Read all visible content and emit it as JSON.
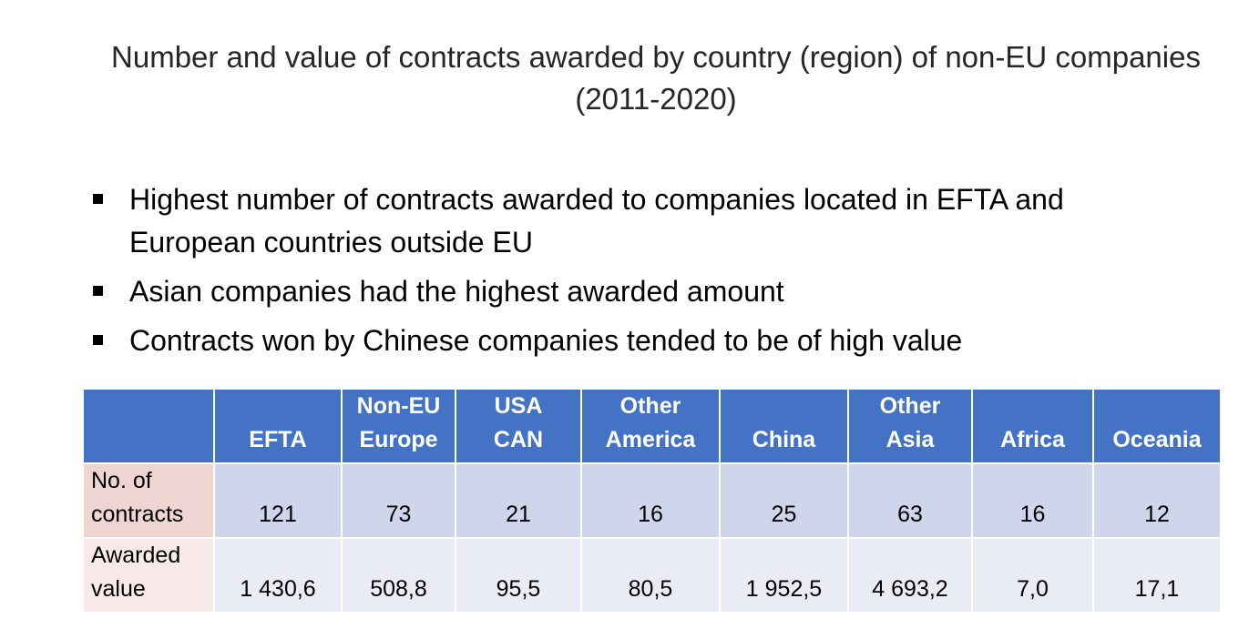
{
  "title": {
    "line1": "Number and value of contracts awarded by country (region) of non-EU companies",
    "line2": "(2011-2020)"
  },
  "bullets": [
    "Highest number of contracts awarded to companies located in EFTA and European countries outside EU",
    "Asian companies had the highest awarded amount",
    "Contracts won by Chinese companies tended to be of high value"
  ],
  "table": {
    "columns": [
      {
        "line1": "",
        "line2": "EFTA"
      },
      {
        "line1": "Non-EU",
        "line2": "Europe"
      },
      {
        "line1": "USA",
        "line2": "CAN"
      },
      {
        "line1": "Other",
        "line2": "America"
      },
      {
        "line1": "",
        "line2": "China"
      },
      {
        "line1": "Other",
        "line2": "Asia"
      },
      {
        "line1": "",
        "line2": "Africa"
      },
      {
        "line1": "",
        "line2": "Oceania"
      }
    ],
    "rows": [
      {
        "label_line1": "No. of",
        "label_line2": "contracts",
        "values": [
          "121",
          "73",
          "21",
          "16",
          "25",
          "63",
          "16",
          "12"
        ]
      },
      {
        "label_line1": "Awarded",
        "label_line2": "value",
        "values": [
          "1 430,6",
          "508,8",
          "95,5",
          "80,5",
          "1 952,5",
          "4 693,2",
          "7,0",
          "17,1"
        ]
      }
    ]
  },
  "colors": {
    "header_bg": "#4472c4",
    "row1_bg": "#cfd5ea",
    "row2_bg": "#e9ebf5",
    "row1_label_bg": "#eed5d2",
    "row2_label_bg": "#f7eae8"
  }
}
